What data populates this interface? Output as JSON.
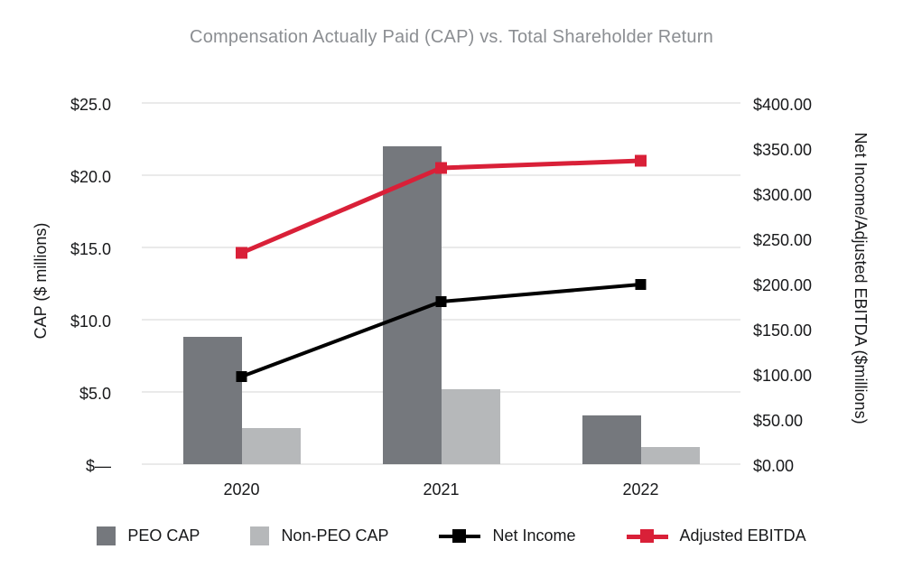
{
  "title": "Compensation Actually Paid (CAP) vs. Total Shareholder Return",
  "chart_data": {
    "type": "bar+line combo",
    "categories": [
      "2020",
      "2021",
      "2022"
    ],
    "series": [
      {
        "name": "PEO CAP",
        "type": "bar",
        "axis": "left",
        "color": "#75787d",
        "values": [
          8.8,
          22.0,
          3.4
        ]
      },
      {
        "name": "Non-PEO CAP",
        "type": "bar",
        "axis": "left",
        "color": "#b6b8ba",
        "values": [
          2.5,
          5.2,
          1.2
        ]
      },
      {
        "name": "Net Income",
        "type": "line",
        "axis": "right",
        "color": "#000000",
        "values": [
          97,
          180,
          199
        ]
      },
      {
        "name": "Adjusted EBITDA",
        "type": "line",
        "axis": "right",
        "color": "#d92038",
        "values": [
          234,
          328,
          336
        ]
      }
    ],
    "left_axis": {
      "label": "CAP ($ millions)",
      "ticks": [
        "$25.0",
        "$20.0",
        "$15.0",
        "$10.0",
        "$5.0",
        "$—"
      ],
      "tick_values": [
        25,
        20,
        15,
        10,
        5,
        0
      ],
      "range": [
        0,
        25
      ]
    },
    "right_axis": {
      "label": "Net Income/Adjusted EBITDA ($millions)",
      "ticks": [
        "$400.00",
        "$350.00",
        "$300.00",
        "$250.00",
        "$200.00",
        "$150.00",
        "$100.00",
        "$50.00",
        "$0.00"
      ],
      "tick_values": [
        400,
        350,
        300,
        250,
        200,
        150,
        100,
        50,
        0
      ],
      "range": [
        0,
        400
      ]
    },
    "legend_position": "bottom",
    "grid": true
  }
}
